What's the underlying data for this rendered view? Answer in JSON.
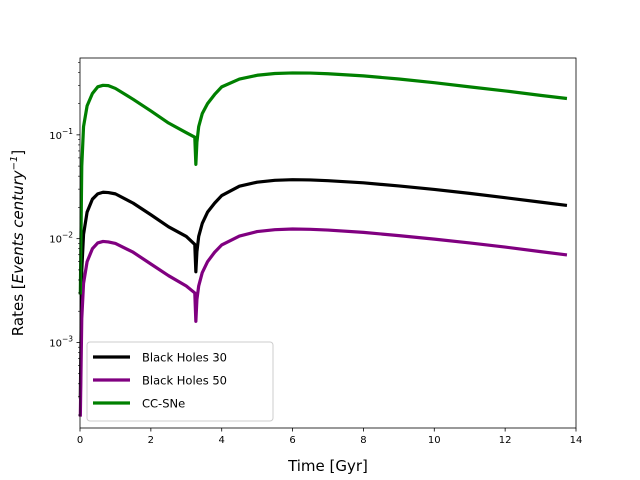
{
  "chart_data": {
    "type": "line",
    "title": "",
    "xlabel": "Time [Gyr]",
    "ylabel_prefix": "Rates [",
    "ylabel_italic": "Events century",
    "ylabel_sup": "−1",
    "ylabel_suffix": "]",
    "xlim": [
      0,
      14
    ],
    "ylim": [
      0.00015,
      0.55
    ],
    "yscale": "log",
    "xticks": [
      0,
      2,
      4,
      6,
      8,
      10,
      12,
      14
    ],
    "xtick_labels": [
      "0",
      "2",
      "4",
      "6",
      "8",
      "10",
      "12",
      "14"
    ],
    "ytick_base_labels": [
      "10",
      "10",
      "10"
    ],
    "ytick_exp_labels": [
      "−3",
      "−2",
      "−1"
    ],
    "grid": false,
    "legend_position": "lower-left",
    "x": [
      0.01,
      0.05,
      0.1,
      0.2,
      0.35,
      0.5,
      0.65,
      0.8,
      1.0,
      1.5,
      2.0,
      2.5,
      3.0,
      3.24,
      3.27,
      3.3,
      3.35,
      3.45,
      3.6,
      3.8,
      4.0,
      4.5,
      5.0,
      5.5,
      6.0,
      6.5,
      7.0,
      8.0,
      9.0,
      10.0,
      11.0,
      12.0,
      13.0,
      13.7
    ],
    "series": [
      {
        "name": "Black Holes 30",
        "color": "#000000",
        "values": [
          0.0003,
          0.005,
          0.011,
          0.018,
          0.024,
          0.027,
          0.028,
          0.0278,
          0.027,
          0.022,
          0.017,
          0.013,
          0.0105,
          0.0088,
          0.0048,
          0.0075,
          0.0105,
          0.014,
          0.018,
          0.022,
          0.026,
          0.032,
          0.035,
          0.0365,
          0.037,
          0.0368,
          0.0362,
          0.0345,
          0.0322,
          0.0298,
          0.0273,
          0.0248,
          0.0225,
          0.021
        ]
      },
      {
        "name": "Black Holes 50",
        "color": "#800080",
        "values": [
          0.0002,
          0.0017,
          0.0037,
          0.006,
          0.008,
          0.0091,
          0.0094,
          0.0093,
          0.009,
          0.0074,
          0.0057,
          0.0044,
          0.0035,
          0.003,
          0.0016,
          0.0026,
          0.0035,
          0.0047,
          0.006,
          0.0074,
          0.0087,
          0.0106,
          0.0117,
          0.0122,
          0.0124,
          0.0123,
          0.0121,
          0.0115,
          0.0107,
          0.0099,
          0.0091,
          0.0083,
          0.0075,
          0.007
        ]
      },
      {
        "name": "CC-SNe",
        "color": "#008000",
        "values": [
          0.003,
          0.05,
          0.12,
          0.19,
          0.25,
          0.29,
          0.3,
          0.298,
          0.28,
          0.22,
          0.17,
          0.13,
          0.105,
          0.095,
          0.052,
          0.085,
          0.12,
          0.16,
          0.2,
          0.245,
          0.29,
          0.345,
          0.375,
          0.39,
          0.395,
          0.394,
          0.388,
          0.37,
          0.345,
          0.318,
          0.29,
          0.265,
          0.24,
          0.225
        ]
      }
    ]
  }
}
